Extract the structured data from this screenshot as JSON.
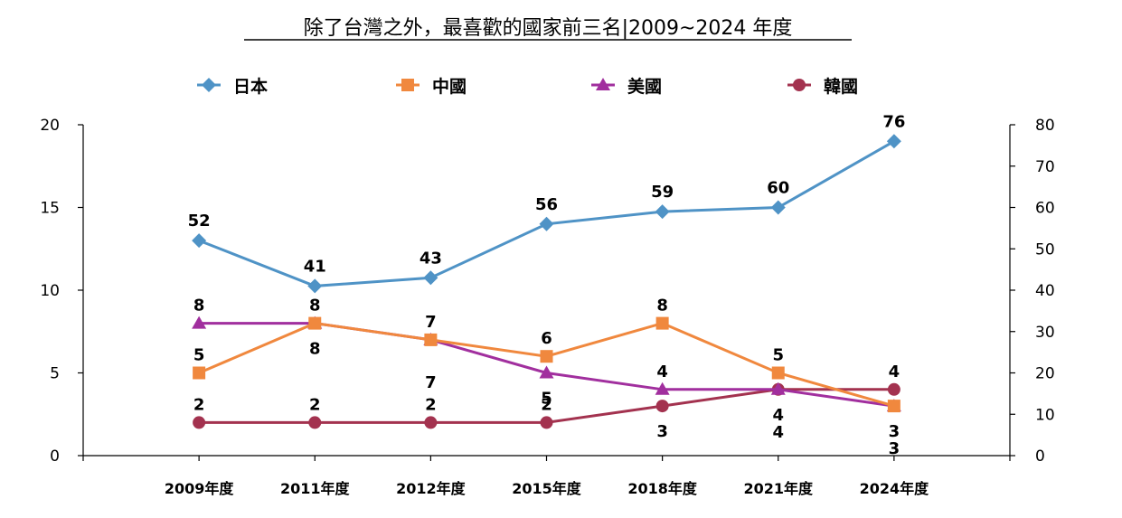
{
  "chart_data": {
    "type": "line",
    "title": "除了台灣之外，最喜歡的國家前三名|2009~2024 年度",
    "categories": [
      "2009年度",
      "2011年度",
      "2012年度",
      "2015年度",
      "2018年度",
      "2021年度",
      "2024年度"
    ],
    "y_left": {
      "min": 0,
      "max": 20,
      "ticks": [
        "0",
        "5",
        "10",
        "15",
        "20"
      ]
    },
    "y_right": {
      "min": 0,
      "max": 80,
      "ticks": [
        "0",
        "10",
        "20",
        "30",
        "40",
        "50",
        "60",
        "70",
        "80"
      ]
    },
    "legend_position": "top",
    "grid": false,
    "series": [
      {
        "name": "日本",
        "axis": "right",
        "color": "#4f93c6",
        "marker": "diamond",
        "values": [
          52,
          41,
          43,
          56,
          59,
          60,
          76
        ],
        "label_positions": [
          "above",
          "above",
          "above",
          "above",
          "above",
          "above",
          "above"
        ]
      },
      {
        "name": "中國",
        "axis": "left",
        "color": "#f0883e",
        "marker": "square",
        "values": [
          5,
          8,
          7,
          6,
          8,
          5,
          3
        ],
        "label_positions": [
          "above",
          "above",
          "above",
          "above",
          "above",
          "above",
          "below2"
        ]
      },
      {
        "name": "美國",
        "axis": "left",
        "color": "#a12f9e",
        "marker": "triangle",
        "values": [
          8,
          8,
          7,
          5,
          4,
          4,
          3
        ],
        "label_positions": [
          "above",
          "below",
          "below2",
          "below",
          "above",
          "below",
          "below"
        ]
      },
      {
        "name": "韓國",
        "axis": "left",
        "color": "#a3324f",
        "marker": "circle",
        "values": [
          2,
          2,
          2,
          2,
          3,
          4,
          4
        ],
        "label_positions": [
          "above",
          "above",
          "above",
          "above",
          "below",
          "below2",
          "above"
        ]
      }
    ]
  }
}
